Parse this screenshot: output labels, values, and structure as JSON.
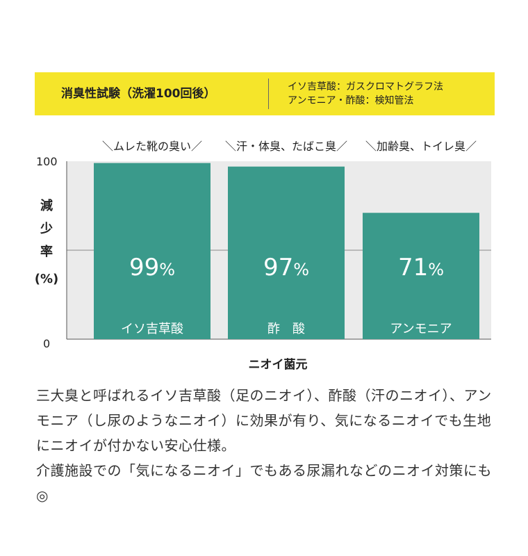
{
  "banner": {
    "title": "消臭性試験（洗濯100回後）",
    "methods": [
      "イソ吉草酸：ガスクロマトグラフ法",
      "アンモニア・酢酸：検知管法"
    ]
  },
  "chart_data": {
    "type": "bar",
    "categories": [
      "イソ吉草酸",
      "酢　酸",
      "アンモニア"
    ],
    "values": [
      99,
      97,
      71
    ],
    "value_suffix": "%",
    "captions": [
      "＼ムレた靴の臭い／",
      "＼汗・体臭、たばこ臭／",
      "＼加齢臭、トイレ臭／"
    ],
    "xlabel": "ニオイ菌元",
    "ylabel": "減少率(%)",
    "ylim": [
      0,
      100
    ],
    "yticks": [
      "0",
      "100"
    ],
    "gridline": 50,
    "colors": {
      "bar": "#3a9a8b",
      "plot_bg": "#ebebeb",
      "text_on_bar": "#ffffff"
    }
  },
  "body": {
    "paragraph1": "三大臭と呼ばれるイソ吉草酸（足のニオイ）、酢酸（汗のニオイ）、アンモニア（し尿のようなニオイ）に効果が有り、気になるニオイでも生地にニオイが付かない安心仕様。",
    "paragraph2": "介護施設での「気になるニオイ」でもある尿漏れなどのニオイ対策にも◎"
  }
}
